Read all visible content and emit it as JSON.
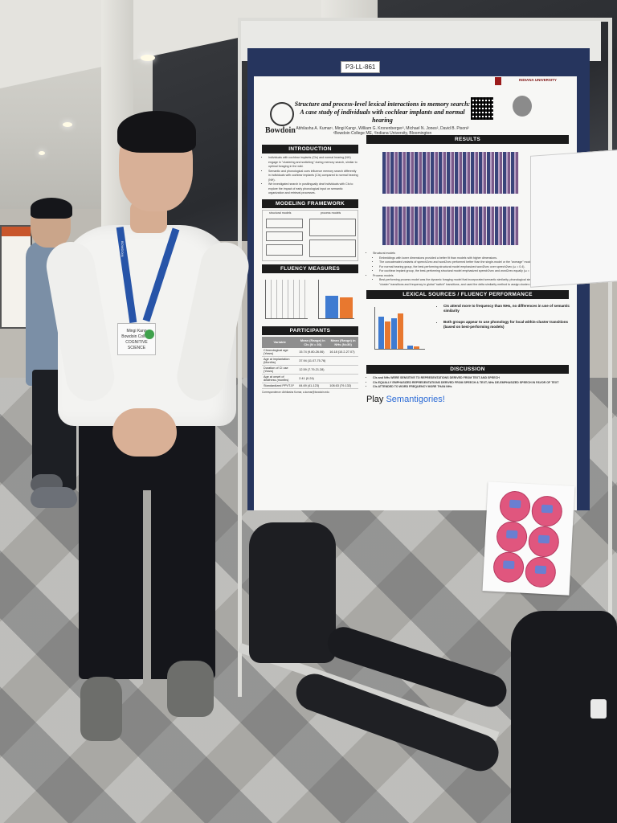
{
  "board_label": "P3-LL-861",
  "poster": {
    "college_logo": "Bowdoin",
    "university_logo": "INDIANA UNIVERSITY",
    "title_line1": "Structure and process-level lexical interactions in memory search:",
    "title_line2": "A case study of individuals with cochlear implants and normal hearing",
    "authors": "Abhilasha A. Kumar¹, Mingi Kang¹, William G. Kronenberger², Michael N. Jones², David B. Pisoni²",
    "affiliations": "¹Bowdoin College ME, ²Indiana University, Bloomington",
    "sections": {
      "introduction": "INTRODUCTION",
      "modeling": "MODELING FRAMEWORK",
      "fluency": "FLUENCY MEASURES",
      "participants": "PARTICIPANTS",
      "results": "RESULTS",
      "lexical": "LEXICAL SOURCES / FLUENCY PERFORMANCE",
      "discussion": "DISCUSSION"
    },
    "intro_bullets": [
      "Individuals with cochlear implants (CIs) and normal hearing (NH) engage in \"clustering and switching\" during memory search, similar to optimal foraging in the wild.",
      "Semantic and phonological cues influence memory search differently in individuals with cochlear implants (CIs) compared to normal hearing (NH).",
      "We investigated search in postlingually deaf individuals with CIs to explore the impact of early phonological input on semantic organization and retrieval processes."
    ],
    "modeling_labels": [
      "structural models",
      "process models"
    ],
    "participants_table": {
      "headers": [
        "Variable",
        "Mean (Range) in CIs (N = 30)",
        "Mean (Range) in NHs (N=30)"
      ],
      "rows": [
        [
          "Chronological age (Years)",
          "15.74 (9.80-26.06)",
          "16.18 (10.2-27.07)"
        ],
        [
          "Age at implantation (Months)",
          "37.94 (11.07-75.76)",
          ""
        ],
        [
          "Duration of CI use (Years)",
          "12.59 (7.79-21.28)",
          ""
        ],
        [
          "Age at onset of deafness (months)",
          "2.41 (0-24)",
          ""
        ],
        [
          "Standardized PPVT-5¹",
          "84.69 (41-123)",
          "108.63 (79-132)"
        ]
      ]
    },
    "results_bullets": [
      "Structural models",
      "Embeddings with lower dimensions provided a better fit than models with higher dimensions.",
      "The concatenated variants of speech2vec and word2vec performed better than the single-model or the \"average\" model.",
      "For normal hearing group, the best-performing structural model emphasized word2vec over speech2vec (ω = 0.4).",
      "For cochlear implant group, the best-performing structural model emphasized speech2vec and word2vec equally (ω = 0.5).",
      "Process models",
      "Best-performing process model was the dynamic foraging model that incorporated semantic similarity, phonological similarity, and frequency in local \"cluster\" transitions and frequency in global \"switch\" transitions, and used the delta similarity method to assign cluster-switch designations."
    ],
    "lexical_bullets": [
      "CIs attend more to frequency than NHs, no differences in use of semantic similarity",
      "Both groups appear to use phonology for local within-cluster transitions (based on best-performing models)"
    ],
    "discussion_bullets": [
      "CIs and NHs WERE SENSITIVE TO REPRESENTATIONS DERIVED FROM TEXT AND SPEECH",
      "CIs EQUALLY EMPHASIZED REPRESENTATIONS DERIVED FROM SPEECH & TEXT; NHs DE-EMPHASIZED SPEECH IN FAVOR OF TEXT",
      "CIs ATTENDED TO WORD FREQUENCY MORE THAN NHs"
    ],
    "play_prefix": "Play ",
    "play_game": "Semantigories!",
    "correspondence": "Correspondence: Abhilasha Kumar, a.kumar@bowdoin.edu"
  },
  "badge": {
    "name": "Mingi Kang",
    "affiliation": "Bowdoin College",
    "event_ribbon": "COGNITIVE SCIENCE"
  },
  "lanyard_text": "BOWDOIN",
  "colors": {
    "board": "#26355e",
    "lanyard": "#2754a8",
    "sticker": "#e0567e",
    "bar_blue": "#3f7bd1",
    "bar_orange": "#e8782f"
  }
}
